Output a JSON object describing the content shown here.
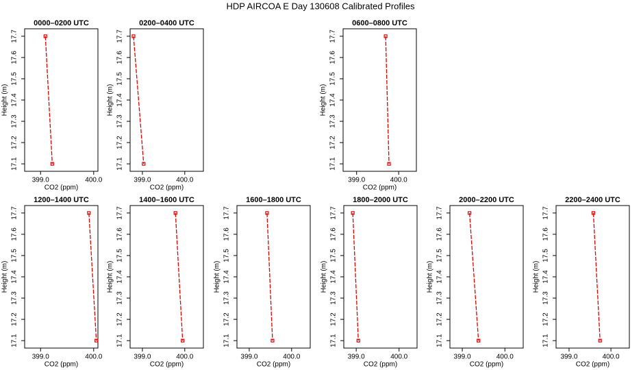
{
  "title": "HDP AIRCOA E  Day 130608  Calibrated Profiles",
  "chart_data": [
    {
      "type": "line",
      "title": "0000–0200 UTC",
      "xlabel": "CO2 (ppm)",
      "ylabel": "Height (m)",
      "color": "#e00000",
      "x": [
        399.09,
        399.22
      ],
      "values": [
        17.7,
        17.1
      ],
      "xlim": [
        398.7,
        400.08
      ],
      "ylim": [
        17.065,
        17.735
      ],
      "xticks": [
        {
          "value": 399,
          "label": "399.0"
        },
        {
          "value": 400,
          "label": "400.0"
        }
      ],
      "yticks": [
        17.1,
        17.2,
        17.3,
        17.4,
        17.5,
        17.6,
        17.7
      ]
    },
    {
      "type": "line",
      "title": "0200–0400 UTC",
      "xlabel": "CO2 (ppm)",
      "ylabel": "Height (m)",
      "color": "#e00000",
      "x": [
        398.79,
        399.03
      ],
      "values": [
        17.7,
        17.1
      ],
      "xlim": [
        398.71,
        400.44
      ],
      "ylim": [
        17.065,
        17.735
      ],
      "xticks": [
        {
          "value": 399,
          "label": "399.0"
        },
        {
          "value": 400,
          "label": "400.0"
        }
      ],
      "yticks": [
        17.1,
        17.2,
        17.3,
        17.4,
        17.5,
        17.6,
        17.7
      ]
    },
    {
      "type": "line",
      "title": "0600–0800 UTC",
      "xlabel": "CO2 (ppm)",
      "ylabel": "Height (m)",
      "color": "#e00000",
      "x": [
        399.69,
        399.77
      ],
      "values": [
        17.7,
        17.1
      ],
      "xlim": [
        398.68,
        400.42
      ],
      "ylim": [
        17.065,
        17.735
      ],
      "xticks": [
        {
          "value": 399,
          "label": "399.0"
        },
        {
          "value": 400,
          "label": "400.0"
        }
      ],
      "yticks": [
        17.1,
        17.2,
        17.3,
        17.4,
        17.5,
        17.6,
        17.7
      ]
    },
    {
      "type": "line",
      "title": "1200–1400 UTC",
      "xlabel": "CO2 (ppm)",
      "ylabel": "Height (m)",
      "color": "#e00000",
      "x": [
        399.91,
        400.05
      ],
      "values": [
        17.7,
        17.1
      ],
      "xlim": [
        398.7,
        400.08
      ],
      "ylim": [
        17.065,
        17.735
      ],
      "xticks": [
        {
          "value": 399,
          "label": "399.0"
        },
        {
          "value": 400,
          "label": "400.0"
        }
      ],
      "yticks": [
        17.1,
        17.2,
        17.3,
        17.4,
        17.5,
        17.6,
        17.7
      ]
    },
    {
      "type": "line",
      "title": "1400–1600 UTC",
      "xlabel": "CO2 (ppm)",
      "ylabel": "Height (m)",
      "color": "#e00000",
      "x": [
        399.78,
        399.95
      ],
      "values": [
        17.7,
        17.1
      ],
      "xlim": [
        398.71,
        400.44
      ],
      "ylim": [
        17.065,
        17.735
      ],
      "xticks": [
        {
          "value": 399,
          "label": "399.0"
        },
        {
          "value": 400,
          "label": "400.0"
        }
      ],
      "yticks": [
        17.1,
        17.2,
        17.3,
        17.4,
        17.5,
        17.6,
        17.7
      ]
    },
    {
      "type": "line",
      "title": "1600–1800 UTC",
      "xlabel": "CO2 (ppm)",
      "ylabel": "Height (m)",
      "color": "#e00000",
      "x": [
        399.42,
        399.55
      ],
      "values": [
        17.7,
        17.1
      ],
      "xlim": [
        398.71,
        400.44
      ],
      "ylim": [
        17.065,
        17.735
      ],
      "xticks": [
        {
          "value": 399,
          "label": "399.0"
        },
        {
          "value": 400,
          "label": "400.0"
        }
      ],
      "yticks": [
        17.1,
        17.2,
        17.3,
        17.4,
        17.5,
        17.6,
        17.7
      ]
    },
    {
      "type": "line",
      "title": "1800–2000 UTC",
      "xlabel": "CO2 (ppm)",
      "ylabel": "Height (m)",
      "color": "#e00000",
      "x": [
        398.92,
        399.05
      ],
      "values": [
        17.7,
        17.1
      ],
      "xlim": [
        398.71,
        400.42
      ],
      "ylim": [
        17.065,
        17.735
      ],
      "xticks": [
        {
          "value": 399,
          "label": "399.0"
        },
        {
          "value": 400,
          "label": "400.0"
        }
      ],
      "yticks": [
        17.1,
        17.2,
        17.3,
        17.4,
        17.5,
        17.6,
        17.7
      ]
    },
    {
      "type": "line",
      "title": "2000–2200 UTC",
      "xlabel": "CO2 (ppm)",
      "ylabel": "Height (m)",
      "color": "#e00000",
      "x": [
        399.17,
        399.38
      ],
      "values": [
        17.7,
        17.1
      ],
      "xlim": [
        398.71,
        400.43
      ],
      "ylim": [
        17.065,
        17.735
      ],
      "xticks": [
        {
          "value": 399,
          "label": "399.0"
        },
        {
          "value": 400,
          "label": "400.0"
        }
      ],
      "yticks": [
        17.1,
        17.2,
        17.3,
        17.4,
        17.5,
        17.6,
        17.7
      ]
    },
    {
      "type": "line",
      "title": "2200–2400 UTC",
      "xlabel": "CO2 (ppm)",
      "ylabel": "Height (m)",
      "color": "#e00000",
      "x": [
        399.58,
        399.74
      ],
      "values": [
        17.7,
        17.1
      ],
      "xlim": [
        398.69,
        400.44
      ],
      "ylim": [
        17.065,
        17.735
      ],
      "xticks": [
        {
          "value": 399,
          "label": "399.0"
        },
        {
          "value": 400,
          "label": "400.0"
        }
      ],
      "yticks": [
        17.1,
        17.2,
        17.3,
        17.4,
        17.5,
        17.6,
        17.7
      ]
    }
  ]
}
